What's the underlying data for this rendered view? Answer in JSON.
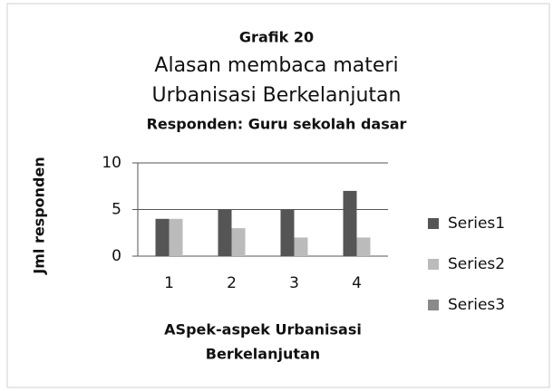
{
  "chart_data": {
    "type": "bar",
    "title": "Grafik 20",
    "subtitle": [
      "Alasan membaca materi",
      "Urbanisasi Berkelanjutan",
      "Responden: Guru sekolah dasar"
    ],
    "x_label": [
      "ASpek-aspek Urbanisasi",
      "Berkelanjutan"
    ],
    "y_label": "Jml responden",
    "categories": [
      "1",
      "2",
      "3",
      "4"
    ],
    "series": [
      {
        "name": "Series1",
        "color": "#555555",
        "values": [
          4,
          5,
          5,
          7
        ]
      },
      {
        "name": "Series2",
        "color": "#bbbbbb",
        "values": [
          4,
          3,
          2,
          2
        ]
      },
      {
        "name": "Series3",
        "color": "#8a8a8a",
        "values": [
          null,
          null,
          null,
          null
        ]
      }
    ],
    "ylim": [
      0,
      10
    ],
    "yticks": [
      0,
      5,
      10
    ],
    "grid": true,
    "legend": "right"
  }
}
